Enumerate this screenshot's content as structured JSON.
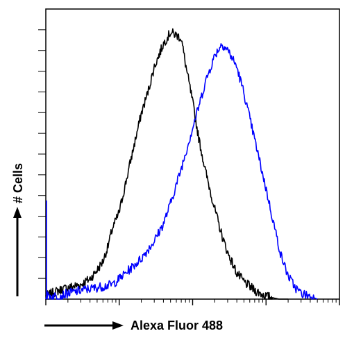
{
  "chart_data": {
    "type": "line",
    "title": "",
    "xlabel": "Alexa Fluor 488",
    "ylabel": "# Cells",
    "x_scale": "log",
    "xlim": [
      1,
      10000
    ],
    "ylim": [
      0,
      100
    ],
    "grid": false,
    "legend": "none",
    "x_decade_ticks": [
      1,
      10,
      100,
      1000,
      10000
    ],
    "series": [
      {
        "color": "#000000",
        "points": [
          [
            1,
            1
          ],
          [
            1.2,
            2
          ],
          [
            1.5,
            3
          ],
          [
            2,
            4
          ],
          [
            3,
            5
          ],
          [
            4,
            7
          ],
          [
            5,
            10
          ],
          [
            6,
            13
          ],
          [
            7,
            18
          ],
          [
            8,
            24
          ],
          [
            10,
            30
          ],
          [
            12,
            39
          ],
          [
            15,
            50
          ],
          [
            20,
            64
          ],
          [
            25,
            72
          ],
          [
            30,
            80
          ],
          [
            40,
            88
          ],
          [
            50,
            92
          ],
          [
            60,
            91
          ],
          [
            70,
            90
          ],
          [
            80,
            81
          ],
          [
            100,
            68
          ],
          [
            120,
            56
          ],
          [
            150,
            44
          ],
          [
            200,
            31
          ],
          [
            250,
            22
          ],
          [
            300,
            16
          ],
          [
            400,
            9
          ],
          [
            500,
            6
          ],
          [
            700,
            3
          ],
          [
            1000,
            1
          ],
          [
            1500,
            0
          ],
          [
            2000,
            0
          ]
        ]
      },
      {
        "color": "#0000ff",
        "points": [
          [
            1,
            1
          ],
          [
            1.5,
            1
          ],
          [
            2,
            2
          ],
          [
            3,
            3
          ],
          [
            5,
            4
          ],
          [
            8,
            5
          ],
          [
            10,
            7
          ],
          [
            15,
            11
          ],
          [
            20,
            14
          ],
          [
            30,
            20
          ],
          [
            40,
            26
          ],
          [
            50,
            33
          ],
          [
            70,
            45
          ],
          [
            100,
            59
          ],
          [
            120,
            66
          ],
          [
            150,
            75
          ],
          [
            200,
            84
          ],
          [
            250,
            88
          ],
          [
            300,
            86
          ],
          [
            400,
            80
          ],
          [
            500,
            71
          ],
          [
            700,
            55
          ],
          [
            1000,
            38
          ],
          [
            1300,
            25
          ],
          [
            1600,
            15
          ],
          [
            2000,
            8
          ],
          [
            2500,
            4
          ],
          [
            3000,
            2
          ],
          [
            4000,
            1
          ],
          [
            5000,
            0
          ]
        ]
      }
    ]
  }
}
